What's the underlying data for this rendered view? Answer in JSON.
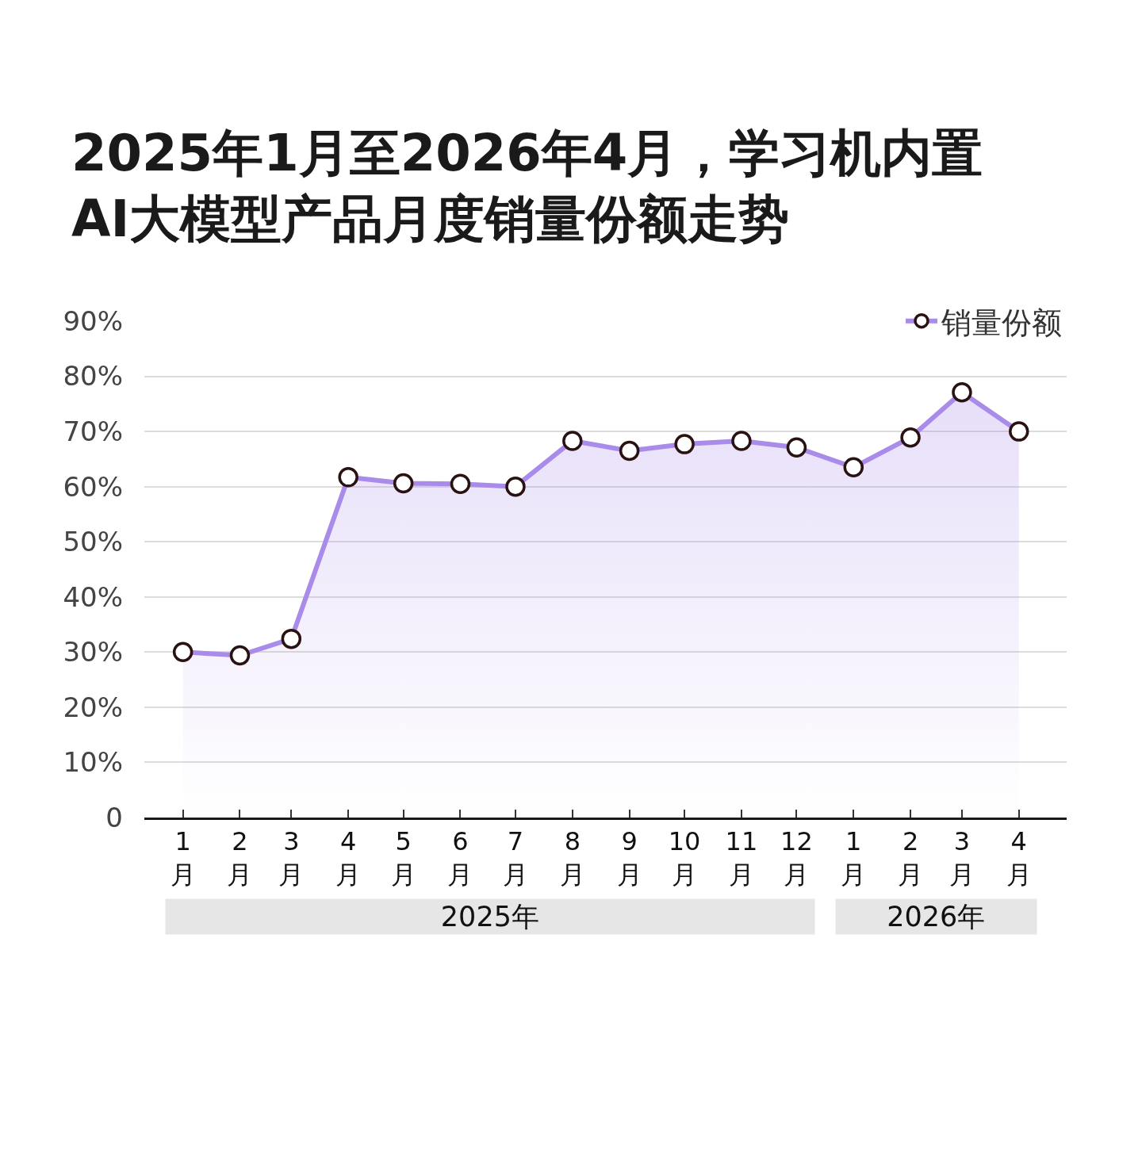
{
  "chart_data": {
    "type": "area",
    "title": "2025年1月至2026年4月，学习机内置\nAI大模型产品月度销量份额走势",
    "x": [
      "2025-01",
      "2025-02",
      "2025-03",
      "2025-04",
      "2025-05",
      "2025-06",
      "2025-07",
      "2025-08",
      "2025-09",
      "2025-10",
      "2025-11",
      "2025-12",
      "2026-01",
      "2026-02",
      "2026-03",
      "2026-04"
    ],
    "series": [
      {
        "name": "销量份额",
        "color": "#a98be9",
        "values": [
          30.0,
          29.4,
          32.4,
          61.7,
          60.6,
          60.5,
          60.0,
          68.3,
          66.5,
          67.7,
          68.3,
          67.1,
          63.5,
          68.9,
          77.1,
          70.0
        ]
      }
    ],
    "xlim": [
      "2024-12-11",
      "2026-04-27"
    ],
    "xticks": [
      {
        "value": "2025-01",
        "label": "1\n月"
      },
      {
        "value": "2025-02",
        "label": "2\n月"
      },
      {
        "value": "2025-03",
        "label": "3\n月"
      },
      {
        "value": "2025-04",
        "label": "4\n月"
      },
      {
        "value": "2025-05",
        "label": "5\n月"
      },
      {
        "value": "2025-06",
        "label": "6\n月"
      },
      {
        "value": "2025-07",
        "label": "7\n月"
      },
      {
        "value": "2025-08",
        "label": "8\n月"
      },
      {
        "value": "2025-09",
        "label": "9\n月"
      },
      {
        "value": "2025-10",
        "label": "10\n月"
      },
      {
        "value": "2025-11",
        "label": "11\n月"
      },
      {
        "value": "2025-12",
        "label": "12\n月"
      },
      {
        "value": "2026-01",
        "label": "1\n月"
      },
      {
        "value": "2026-02",
        "label": "2\n月"
      },
      {
        "value": "2026-03",
        "label": "3\n月"
      },
      {
        "value": "2026-04",
        "label": "4\n月"
      }
    ],
    "ylim": [
      0,
      90
    ],
    "yticks": [
      0,
      {
        "value": 10,
        "label": "10%"
      },
      {
        "value": 20,
        "label": "20%"
      },
      {
        "value": 30,
        "label": "30%"
      },
      {
        "value": 40,
        "label": "40%"
      },
      {
        "value": 50,
        "label": "50%"
      },
      {
        "value": 60,
        "label": "60%"
      },
      {
        "value": 70,
        "label": "70%"
      },
      {
        "value": 80,
        "label": "80%"
      },
      {
        "value": 90,
        "label": "90%"
      }
    ],
    "annotations": [
      "2025年",
      "2026年"
    ],
    "grid": "y",
    "legend": "top right",
    "marker": "circle",
    "line_style": "solid"
  }
}
